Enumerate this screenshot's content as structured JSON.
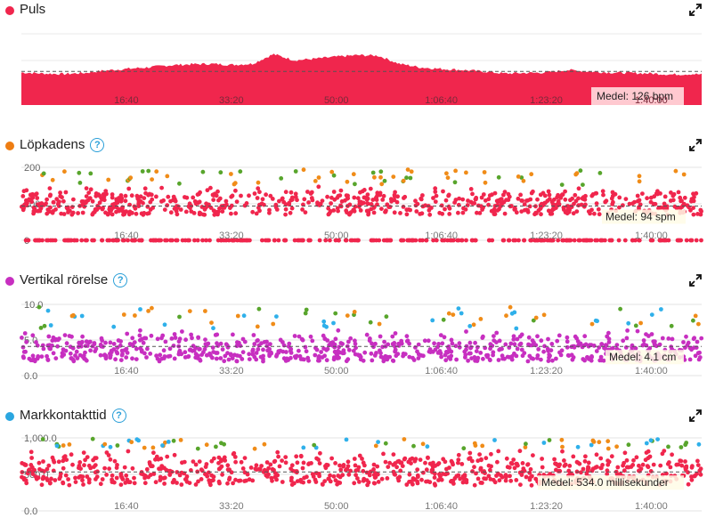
{
  "colors": {
    "pulse": "#f0264d",
    "cadence_dot": "#ee7d12",
    "vertical_dot": "#c72fc0",
    "ground_dot": "#2aa6e0",
    "help": "#2a9fd8",
    "green": "#58a52c",
    "orange": "#f08c18",
    "blue": "#2fb0ea"
  },
  "icons": {
    "help": "help-circle-icon",
    "expand": "expand-icon"
  },
  "x_tick_labels": [
    "16:40",
    "33:20",
    "50:00",
    "1:06:40",
    "1:23:20",
    "1:40:00"
  ],
  "panels": [
    {
      "id": "puls",
      "title": "Puls",
      "has_help": false,
      "avg_label": "Medel: 126 bpm"
    },
    {
      "id": "lopkadens",
      "title": "Löpkadens",
      "has_help": true,
      "help_glyph": "?",
      "avg_label": "Medel: 94 spm"
    },
    {
      "id": "vertikal",
      "title": "Vertikal rörelse",
      "has_help": true,
      "help_glyph": "?",
      "avg_label": "Medel: 4.1 cm"
    },
    {
      "id": "markkontakt",
      "title": "Markkontakttid",
      "has_help": true,
      "help_glyph": "?",
      "avg_label": "Medel: 534.0 millisekunder"
    }
  ],
  "chart_data": [
    {
      "type": "area",
      "name": "Puls",
      "x_unit": "elapsed time",
      "xlim_seconds": [
        0,
        6480
      ],
      "x_ticks_seconds": [
        1000,
        2000,
        3000,
        4000,
        5000,
        6000
      ],
      "x_tick_labels": [
        "16:40",
        "33:20",
        "50:00",
        "1:06:40",
        "1:23:20",
        "1:40:00"
      ],
      "y_average": 126,
      "y_average_label": "Medel: 126 bpm",
      "ylim": [
        60,
        200
      ],
      "x": [
        0,
        200,
        400,
        600,
        800,
        1000,
        1200,
        1400,
        1600,
        1800,
        2000,
        2200,
        2400,
        2600,
        2800,
        3000,
        3200,
        3400,
        3600,
        3800,
        4000,
        4200,
        4400,
        4600,
        4800,
        5000,
        5200,
        5400,
        5600,
        5800,
        6000,
        6200,
        6400,
        6480
      ],
      "values": [
        124,
        122,
        121,
        123,
        128,
        131,
        134,
        138,
        140,
        141,
        139,
        141,
        160,
        148,
        151,
        155,
        158,
        157,
        141,
        134,
        131,
        129,
        126,
        122,
        123,
        124,
        129,
        126,
        124,
        123,
        122,
        120,
        121,
        120
      ]
    },
    {
      "type": "scatter",
      "name": "Löpkadens",
      "xlim_seconds": [
        0,
        6480
      ],
      "x_ticks_seconds": [
        1000,
        2000,
        3000,
        4000,
        5000,
        6000
      ],
      "x_tick_labels": [
        "16:40",
        "33:20",
        "50:00",
        "1:06:40",
        "1:23:20",
        "1:40:00"
      ],
      "y_ticks": [
        0,
        100,
        200
      ],
      "y_tick_labels": [
        "0",
        "100",
        "200"
      ],
      "ylim": [
        0,
        200
      ],
      "y_average": 94,
      "y_average_label": "Medel: 94 spm",
      "typical_range": [
        70,
        150
      ],
      "zero_line_points": true,
      "outlier_colors": [
        "green",
        "orange"
      ]
    },
    {
      "type": "scatter",
      "name": "Vertikal rörelse",
      "xlim_seconds": [
        0,
        6480
      ],
      "x_ticks_seconds": [
        1000,
        2000,
        3000,
        4000,
        5000,
        6000
      ],
      "x_tick_labels": [
        "16:40",
        "33:20",
        "50:00",
        "1:06:40",
        "1:23:20",
        "1:40:00"
      ],
      "y_ticks": [
        0.0,
        5.0,
        10.0
      ],
      "y_tick_labels": [
        "0.0",
        "5.0",
        "10.0"
      ],
      "ylim": [
        0,
        10
      ],
      "y_average": 4.1,
      "y_average_label": "Medel: 4.1 cm",
      "typical_range": [
        2.0,
        6.5
      ],
      "outlier_colors": [
        "blue",
        "green",
        "orange"
      ]
    },
    {
      "type": "scatter",
      "name": "Markkontakttid",
      "xlim_seconds": [
        0,
        6480
      ],
      "x_ticks_seconds": [
        1000,
        2000,
        3000,
        4000,
        5000,
        6000
      ],
      "x_tick_labels": [
        "16:40",
        "33:20",
        "50:00",
        "1:06:40",
        "1:23:20",
        "1:40:00"
      ],
      "y_ticks": [
        0.0,
        500.0,
        1000.0
      ],
      "y_tick_labels": [
        "0.0",
        "500.0",
        "1,000.0"
      ],
      "ylim": [
        0,
        1000
      ],
      "y_average": 534.0,
      "y_average_label": "Medel: 534.0 millisekunder",
      "typical_range": [
        350,
        850
      ],
      "outlier_colors": [
        "blue",
        "green",
        "orange"
      ]
    }
  ]
}
